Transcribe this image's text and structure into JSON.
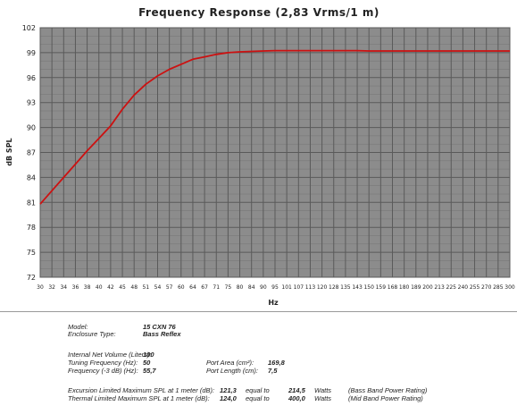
{
  "chart_data": {
    "type": "line",
    "title": "Frequency Response (2,83 Vrms/1 m)",
    "xlabel": "Hz",
    "ylabel": "dB SPL",
    "x_scale": "log",
    "xlim": [
      30,
      300
    ],
    "ylim": [
      72,
      102
    ],
    "y_ticks": [
      "72",
      "75",
      "78",
      "81",
      "84",
      "87",
      "90",
      "93",
      "96",
      "99",
      "102"
    ],
    "x_ticks": [
      "30",
      "32",
      "34",
      "36",
      "38",
      "40",
      "42",
      "45",
      "48",
      "51",
      "54",
      "57",
      "60",
      "64",
      "67",
      "71",
      "75",
      "80",
      "84",
      "90",
      "95",
      "101",
      "107",
      "113",
      "120",
      "128",
      "135",
      "143",
      "150",
      "159",
      "168",
      "180",
      "189",
      "200",
      "213",
      "225",
      "240",
      "255",
      "270",
      "285",
      "300"
    ],
    "grid": true,
    "background": "#8c8c8c",
    "grid_color": "#5a5a5a",
    "series": [
      {
        "color": "#cc1111",
        "x": [
          30,
          32,
          34,
          36,
          38,
          40,
          42,
          45,
          48,
          51,
          54,
          57,
          60,
          64,
          67,
          71,
          75,
          80,
          84,
          90,
          95,
          101,
          107,
          113,
          120,
          128,
          135,
          143,
          150,
          159,
          168,
          180,
          189,
          200,
          213,
          225,
          240,
          255,
          270,
          285,
          300
        ],
        "y": [
          80.8,
          82.4,
          84.0,
          85.6,
          87.2,
          88.7,
          90.2,
          92.2,
          93.9,
          95.2,
          96.2,
          97.0,
          97.6,
          98.2,
          98.5,
          98.8,
          99.0,
          99.1,
          99.15,
          99.2,
          99.25,
          99.25,
          99.25,
          99.25,
          99.25,
          99.25,
          99.25,
          99.25,
          99.2,
          99.2,
          99.2,
          99.2,
          99.2,
          99.2,
          99.2,
          99.2,
          99.2,
          99.2,
          99.2,
          99.2,
          99.2
        ]
      }
    ]
  },
  "specs": {
    "model_label": "Model:",
    "model_value": "15 CXN 76",
    "enclosure_label": "Enclosure Type:",
    "enclosure_value": "Bass Reflex",
    "volume_label": "Internal Net Volume (Liters):",
    "volume_value": "100",
    "tuning_label": "Tuning Frequency (Hz):",
    "tuning_value": "50",
    "f3_label": "Frequency (-3 dB) (Hz):",
    "f3_value": "55,7",
    "port_area_label": "Port Area (cm²):",
    "port_area_value": "169,8",
    "port_length_label": "Port Length (cm):",
    "port_length_value": "7,5",
    "exc_label": "Excursion Limited Maximum SPL at 1 meter (dB):",
    "exc_value": "121,3",
    "exc_equal": "equal to",
    "exc_watts": "214,5",
    "exc_unit": "Watts",
    "exc_note": "(Bass Band Power Rating)",
    "therm_label": "Thermal Limited Maximum SPL at 1 meter (dB):",
    "therm_value": "124,0",
    "therm_equal": "equal to",
    "therm_watts": "400,0",
    "therm_unit": "Watts",
    "therm_note": "(Mid Band Power Rating)"
  }
}
